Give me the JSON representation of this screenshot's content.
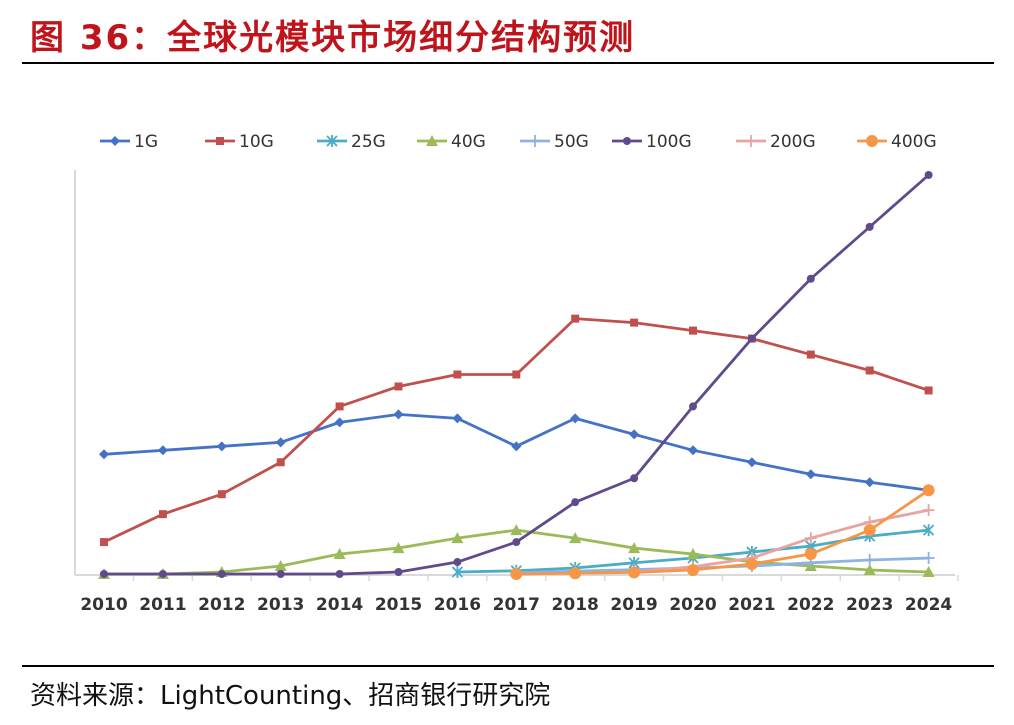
{
  "figure": {
    "title": "图 36：全球光模块市场细分结构预测",
    "source": "资料来源：LightCounting、招商银行研究院"
  },
  "chart_data": {
    "type": "line",
    "title": "",
    "xlabel": "",
    "ylabel": "",
    "ylim": [
      0,
      100
    ],
    "legend_position": "top",
    "y_axis_labels_shown": false,
    "grid": false,
    "categories": [
      "2010",
      "2011",
      "2012",
      "2013",
      "2014",
      "2015",
      "2016",
      "2017",
      "2018",
      "2019",
      "2020",
      "2021",
      "2022",
      "2023",
      "2024"
    ],
    "series": [
      {
        "name": "1G",
        "color": "#4472c4",
        "marker": "diamond",
        "values": [
          30,
          31,
          32,
          33,
          38,
          40,
          39,
          32,
          39,
          35,
          31,
          28,
          25,
          23,
          21
        ]
      },
      {
        "name": "10G",
        "color": "#c0504d",
        "marker": "square",
        "values": [
          8,
          15,
          20,
          28,
          42,
          47,
          50,
          50,
          64,
          63,
          61,
          59,
          55,
          51,
          46
        ]
      },
      {
        "name": "25G",
        "color": "#4bacc6",
        "marker": "asterisk",
        "values": [
          null,
          null,
          null,
          null,
          null,
          null,
          0.5,
          0.8,
          1.5,
          2.8,
          4,
          5.5,
          7,
          9.5,
          11
        ]
      },
      {
        "name": "40G",
        "color": "#9bbb59",
        "marker": "triangle",
        "values": [
          0,
          0,
          0.5,
          2,
          5,
          6.5,
          9,
          11,
          9,
          6.5,
          5,
          3,
          2,
          1,
          0.5
        ]
      },
      {
        "name": "50G",
        "color": "#8db3e2",
        "marker": "plus",
        "values": [
          null,
          null,
          null,
          null,
          null,
          null,
          null,
          0.3,
          0.7,
          1.1,
          1.5,
          2,
          2.8,
          3.5,
          4
        ]
      },
      {
        "name": "100G",
        "color": "#604a8b",
        "marker": "circle",
        "values": [
          0,
          0,
          0,
          0,
          0,
          0.5,
          3,
          8,
          18,
          24,
          42,
          59,
          74,
          87,
          100
        ]
      },
      {
        "name": "200G",
        "color": "#e6a5a3",
        "marker": "plus",
        "values": [
          null,
          null,
          null,
          null,
          null,
          null,
          null,
          null,
          null,
          0.5,
          1.8,
          4,
          9,
          13,
          16
        ]
      },
      {
        "name": "400G",
        "color": "#f79646",
        "marker": "circle",
        "values": [
          null,
          null,
          null,
          null,
          null,
          null,
          null,
          0,
          0.2,
          0.4,
          1,
          2.5,
          5,
          11,
          21
        ]
      }
    ]
  }
}
